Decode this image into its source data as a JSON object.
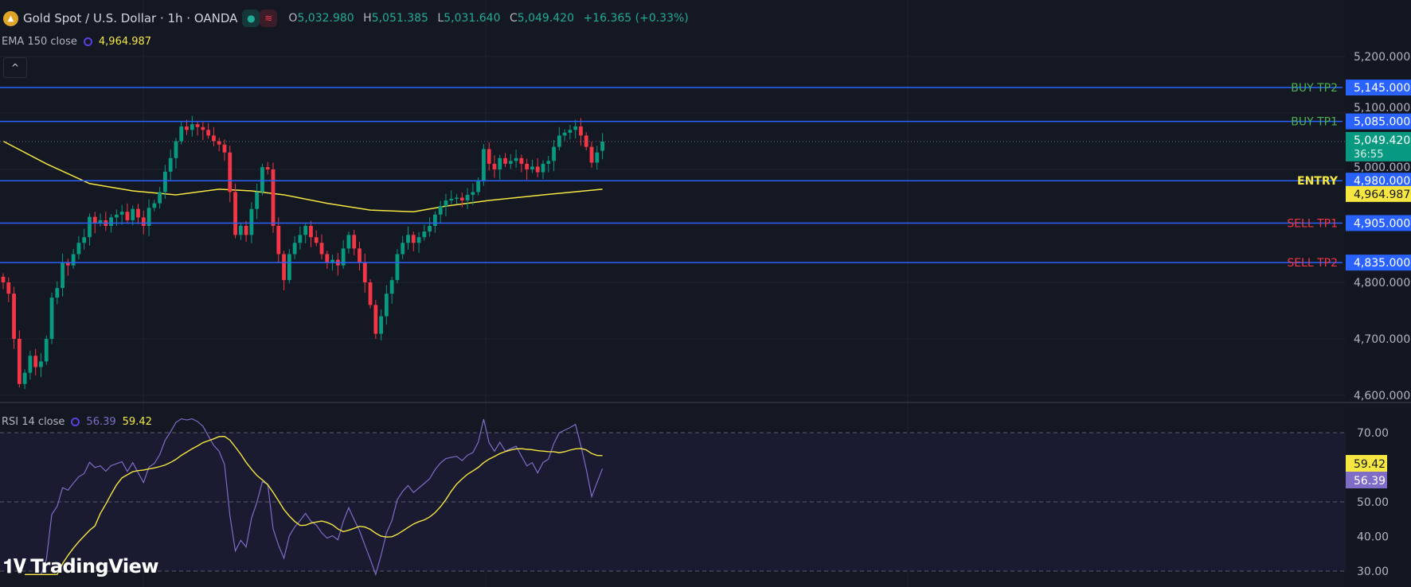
{
  "header": {
    "title": "Gold Spot / U.S. Dollar · 1h · OANDA",
    "coin_icon": "gold-coin-icon",
    "ohlc": {
      "o_label": "O",
      "o": "5,032.980",
      "h_label": "H",
      "h": "5,051.385",
      "l_label": "L",
      "l": "5,031.640",
      "c_label": "C",
      "c": "5,049.420",
      "change": "+16.365 (+0.33%)"
    },
    "collapse_icon": "chevron-up-icon"
  },
  "ema": {
    "label": "EMA 150 close",
    "value": "4,964.987"
  },
  "rsi": {
    "label": "RSI 14 close",
    "value": "56.39",
    "ma_value": "59.42"
  },
  "logo": {
    "text": "TradingView"
  },
  "colors": {
    "background": "#141823",
    "up": "#089981",
    "down": "#f23645",
    "level_line": "#2962ff",
    "ema": "#f5e642",
    "rsi": "#7e6cc7",
    "rsi_ma": "#f5e642",
    "price_tag": "#089981"
  },
  "chart_data": {
    "type": "candlestick",
    "timeframe": "1h",
    "price_axis": {
      "ylim": [
        4570,
        5245
      ],
      "ticks": [
        "5,200.000",
        "5,100.000",
        "5,000.000",
        "4,800.000",
        "4,700.000",
        "4,600.000"
      ],
      "tick_values": [
        5200,
        5100,
        5000,
        4800,
        4700,
        4600
      ]
    },
    "closes": [
      4800,
      4780,
      4700,
      4620,
      4640,
      4670,
      4650,
      4660,
      4700,
      4773,
      4790,
      4836,
      4830,
      4850,
      4870,
      4880,
      4916,
      4905,
      4910,
      4900,
      4915,
      4920,
      4925,
      4910,
      4930,
      4915,
      4900,
      4932,
      4940,
      4960,
      4996,
      5020,
      5050,
      5076,
      5070,
      5080,
      5075,
      5070,
      5060,
      5050,
      5044,
      5030,
      4960,
      4884,
      4900,
      4884,
      4930,
      4960,
      5004,
      5000,
      4900,
      4850,
      4804,
      4850,
      4870,
      4884,
      4900,
      4880,
      4870,
      4850,
      4836,
      4840,
      4830,
      4860,
      4884,
      4860,
      4836,
      4800,
      4760,
      4709,
      4740,
      4780,
      4804,
      4850,
      4870,
      4884,
      4870,
      4880,
      4890,
      4900,
      4920,
      4935,
      4945,
      4948,
      4950,
      4945,
      4955,
      4960,
      4980,
      5036,
      5010,
      5000,
      5020,
      5010,
      5015,
      5020,
      5010,
      5000,
      5005,
      4995,
      5010,
      5015,
      5040,
      5060,
      5065,
      5070,
      5076,
      5060,
      5040,
      5012,
      5030,
      5049.42
    ],
    "last_open": 5032.98,
    "ema_150": [
      [
        0,
        5050
      ],
      [
        8,
        5010
      ],
      [
        16,
        4975
      ],
      [
        24,
        4962
      ],
      [
        32,
        4955
      ],
      [
        40,
        4965
      ],
      [
        46,
        4962
      ],
      [
        52,
        4955
      ],
      [
        60,
        4940
      ],
      [
        68,
        4928
      ],
      [
        76,
        4925
      ],
      [
        82,
        4935
      ],
      [
        90,
        4945
      ],
      [
        100,
        4955
      ],
      [
        111,
        4965
      ]
    ],
    "levels": [
      {
        "label": "BUY TP2",
        "price": 5145,
        "price_text": "5,145.000",
        "color": "#4caf50"
      },
      {
        "label": "BUY TP1",
        "price": 5085,
        "price_text": "5,085.000",
        "color": "#4caf50"
      },
      {
        "label": "ENTRY",
        "price": 4980,
        "price_text": "4,980.000",
        "color": "#f5e642"
      },
      {
        "label": "SELL TP1",
        "price": 4905,
        "price_text": "4,905.000",
        "color": "#f23645"
      },
      {
        "label": "SELL TP2",
        "price": 4835,
        "price_text": "4,835.000",
        "color": "#f23645"
      }
    ],
    "current_price": {
      "price": 5049.42,
      "text": "5,049.420",
      "countdown": "36:55"
    },
    "ema_tag": {
      "price": 4964.987,
      "text": "4,964.987"
    },
    "rsi_axis": {
      "ylim": [
        28,
        75
      ],
      "ticks": [
        "70.00",
        "50.00",
        "40.00",
        "30.00"
      ],
      "tick_values": [
        70,
        50,
        40,
        30
      ],
      "bands": [
        70,
        50,
        30
      ]
    },
    "rsi_tags": {
      "ma": {
        "value": 59.42,
        "text": "59.42"
      },
      "rsi": {
        "value": 56.39,
        "text": "56.39"
      }
    }
  }
}
